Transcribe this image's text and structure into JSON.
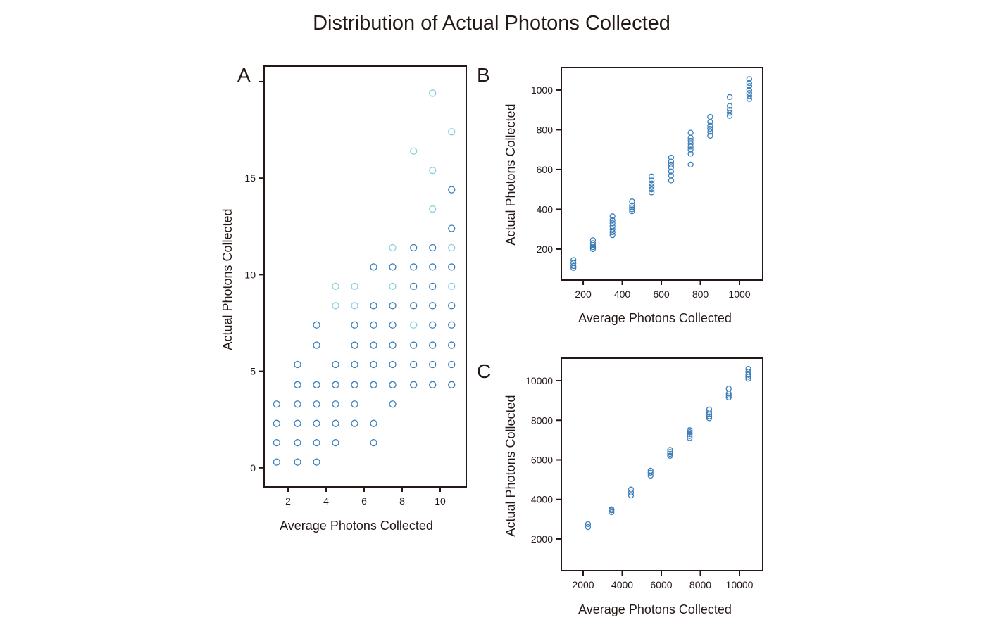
{
  "title": "Distribution of Actual Photons Collected",
  "colors": {
    "primary": "#3b7db8",
    "light": "#8ad0dc",
    "axis": "#231815"
  },
  "chart_data": [
    {
      "type": "scatter",
      "panel": "A",
      "xlabel": "Average Photons Collected",
      "ylabel": "Actual Photons Collected",
      "xlim": [
        0.74,
        11.37
      ],
      "ylim": [
        -0.99,
        20.8
      ],
      "xticks": [
        2,
        4,
        6,
        8,
        10
      ],
      "yticks": [
        0,
        5,
        10,
        15,
        20
      ],
      "ytick_labels": [
        "0",
        "5",
        "10",
        "15",
        ""
      ],
      "series": [
        {
          "name": "main",
          "color": "primary",
          "points": [
            [
              1.4,
              0.3
            ],
            [
              1.4,
              1.3
            ],
            [
              1.4,
              2.3
            ],
            [
              1.4,
              3.3
            ],
            [
              2.5,
              0.3
            ],
            [
              2.5,
              1.3
            ],
            [
              2.5,
              2.3
            ],
            [
              2.5,
              3.3
            ],
            [
              2.5,
              4.3
            ],
            [
              2.5,
              5.35
            ],
            [
              3.5,
              0.3
            ],
            [
              3.5,
              1.3
            ],
            [
              3.5,
              2.3
            ],
            [
              3.5,
              3.3
            ],
            [
              3.5,
              4.3
            ],
            [
              3.5,
              6.35
            ],
            [
              3.5,
              7.4
            ],
            [
              4.5,
              1.3
            ],
            [
              4.5,
              2.3
            ],
            [
              4.5,
              3.3
            ],
            [
              4.5,
              4.3
            ],
            [
              4.5,
              5.35
            ],
            [
              5.5,
              2.3
            ],
            [
              5.5,
              3.3
            ],
            [
              5.5,
              4.3
            ],
            [
              5.5,
              5.35
            ],
            [
              5.5,
              6.35
            ],
            [
              5.5,
              7.4
            ],
            [
              6.5,
              1.3
            ],
            [
              6.5,
              2.3
            ],
            [
              6.5,
              4.3
            ],
            [
              6.5,
              5.35
            ],
            [
              6.5,
              6.35
            ],
            [
              6.5,
              7.4
            ],
            [
              6.5,
              8.4
            ],
            [
              6.5,
              10.4
            ],
            [
              7.5,
              3.3
            ],
            [
              7.5,
              4.3
            ],
            [
              7.5,
              5.35
            ],
            [
              7.5,
              6.35
            ],
            [
              7.5,
              7.4
            ],
            [
              7.5,
              8.4
            ],
            [
              7.5,
              10.4
            ],
            [
              8.6,
              4.3
            ],
            [
              8.6,
              5.35
            ],
            [
              8.6,
              6.35
            ],
            [
              8.6,
              8.4
            ],
            [
              8.6,
              9.4
            ],
            [
              8.6,
              10.4
            ],
            [
              8.6,
              11.4
            ],
            [
              9.6,
              4.3
            ],
            [
              9.6,
              5.35
            ],
            [
              9.6,
              6.35
            ],
            [
              9.6,
              7.4
            ],
            [
              9.6,
              8.4
            ],
            [
              9.6,
              9.4
            ],
            [
              9.6,
              10.4
            ],
            [
              9.6,
              11.4
            ],
            [
              10.6,
              4.3
            ],
            [
              10.6,
              5.35
            ],
            [
              10.6,
              6.35
            ],
            [
              10.6,
              7.4
            ],
            [
              10.6,
              8.4
            ],
            [
              10.6,
              10.4
            ],
            [
              10.6,
              12.4
            ],
            [
              10.6,
              14.4
            ]
          ]
        },
        {
          "name": "light",
          "color": "light",
          "points": [
            [
              4.5,
              8.4
            ],
            [
              4.5,
              9.4
            ],
            [
              5.5,
              8.4
            ],
            [
              5.5,
              9.4
            ],
            [
              7.5,
              9.4
            ],
            [
              7.5,
              11.4
            ],
            [
              8.6,
              7.4
            ],
            [
              8.6,
              16.4
            ],
            [
              9.6,
              13.4
            ],
            [
              9.6,
              15.4
            ],
            [
              9.6,
              19.4
            ],
            [
              10.6,
              9.4
            ],
            [
              10.6,
              11.4
            ],
            [
              10.6,
              17.4
            ]
          ]
        }
      ]
    },
    {
      "type": "scatter",
      "panel": "B",
      "xlabel": "Average Photons Collected",
      "ylabel": "Actual Photons Collected",
      "xlim": [
        88,
        1119
      ],
      "ylim": [
        44,
        1113
      ],
      "xticks": [
        200,
        400,
        600,
        800,
        1000
      ],
      "yticks": [
        200,
        400,
        600,
        800,
        1000
      ],
      "columns": [
        {
          "x": 150,
          "y": [
            105,
            115,
            130,
            145
          ]
        },
        {
          "x": 250,
          "y": [
            200,
            210,
            220,
            230,
            245
          ]
        },
        {
          "x": 350,
          "y": [
            270,
            285,
            300,
            315,
            330,
            345,
            365
          ]
        },
        {
          "x": 450,
          "y": [
            390,
            400,
            410,
            420,
            440
          ]
        },
        {
          "x": 550,
          "y": [
            485,
            500,
            515,
            530,
            545,
            565
          ]
        },
        {
          "x": 650,
          "y": [
            545,
            570,
            590,
            610,
            625,
            640,
            660
          ]
        },
        {
          "x": 750,
          "y": [
            625,
            680,
            700,
            715,
            730,
            745,
            760,
            785
          ]
        },
        {
          "x": 850,
          "y": [
            770,
            790,
            805,
            820,
            840,
            865
          ]
        },
        {
          "x": 950,
          "y": [
            870,
            885,
            900,
            920,
            965
          ]
        },
        {
          "x": 1050,
          "y": [
            955,
            970,
            985,
            1000,
            1020,
            1035,
            1055
          ]
        }
      ]
    },
    {
      "type": "scatter",
      "panel": "C",
      "xlabel": "Average Photons Collected",
      "ylabel": "Actual Photons Collected",
      "xlim": [
        883,
        11189
      ],
      "ylim": [
        398,
        11139
      ],
      "xticks": [
        2000,
        4000,
        6000,
        8000,
        10000
      ],
      "yticks": [
        2000,
        4000,
        6000,
        8000,
        10000
      ],
      "columns": [
        {
          "x": 2250,
          "y": [
            2600,
            2750
          ]
        },
        {
          "x": 3450,
          "y": [
            3350,
            3450,
            3500
          ]
        },
        {
          "x": 4450,
          "y": [
            4200,
            4350,
            4500
          ]
        },
        {
          "x": 5450,
          "y": [
            5200,
            5350,
            5450
          ]
        },
        {
          "x": 6450,
          "y": [
            6200,
            6300,
            6400,
            6500
          ]
        },
        {
          "x": 7450,
          "y": [
            7100,
            7200,
            7300,
            7400,
            7500
          ]
        },
        {
          "x": 8450,
          "y": [
            8100,
            8200,
            8300,
            8400,
            8550
          ]
        },
        {
          "x": 9450,
          "y": [
            9150,
            9250,
            9350,
            9600
          ]
        },
        {
          "x": 10450,
          "y": [
            10100,
            10200,
            10300,
            10450,
            10600
          ]
        }
      ]
    }
  ]
}
